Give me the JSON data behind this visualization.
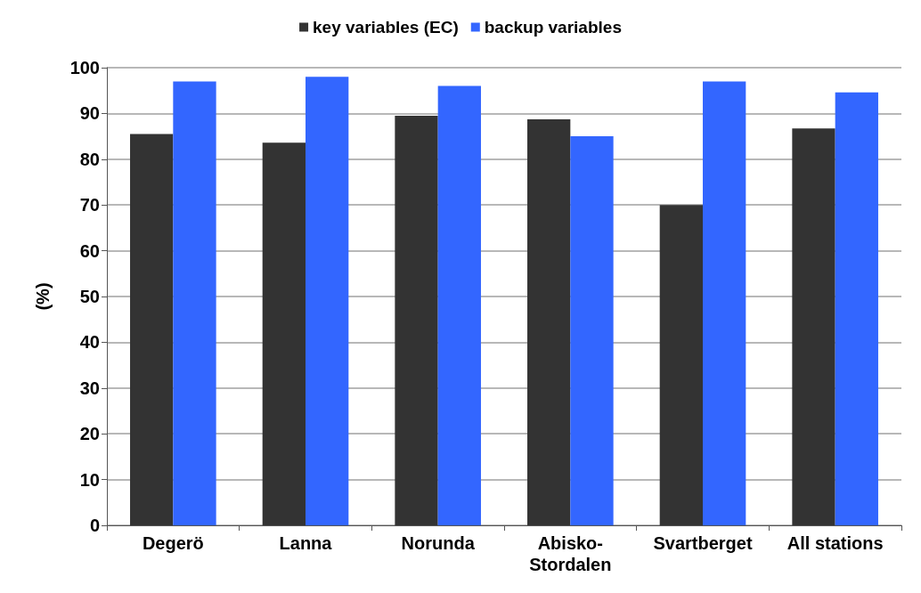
{
  "chart_data": {
    "type": "bar",
    "ylabel": "(%)",
    "categories": [
      "Degerö",
      "Lanna",
      "Norunda",
      "Abisko-Stordalen",
      "Svartberget",
      "All stations"
    ],
    "series": [
      {
        "name": "key variables (EC)",
        "color": "#333333",
        "values": [
          85.5,
          83.6,
          89.5,
          88.7,
          70,
          86.7
        ]
      },
      {
        "name": "backup variables",
        "color": "#3366ff",
        "values": [
          97,
          98,
          96,
          85,
          97,
          94.6
        ]
      }
    ],
    "ylim": [
      0,
      100
    ],
    "yticks": [
      0,
      10,
      20,
      30,
      40,
      50,
      60,
      70,
      80,
      90,
      100
    ],
    "grid": "y",
    "legend": "top"
  }
}
